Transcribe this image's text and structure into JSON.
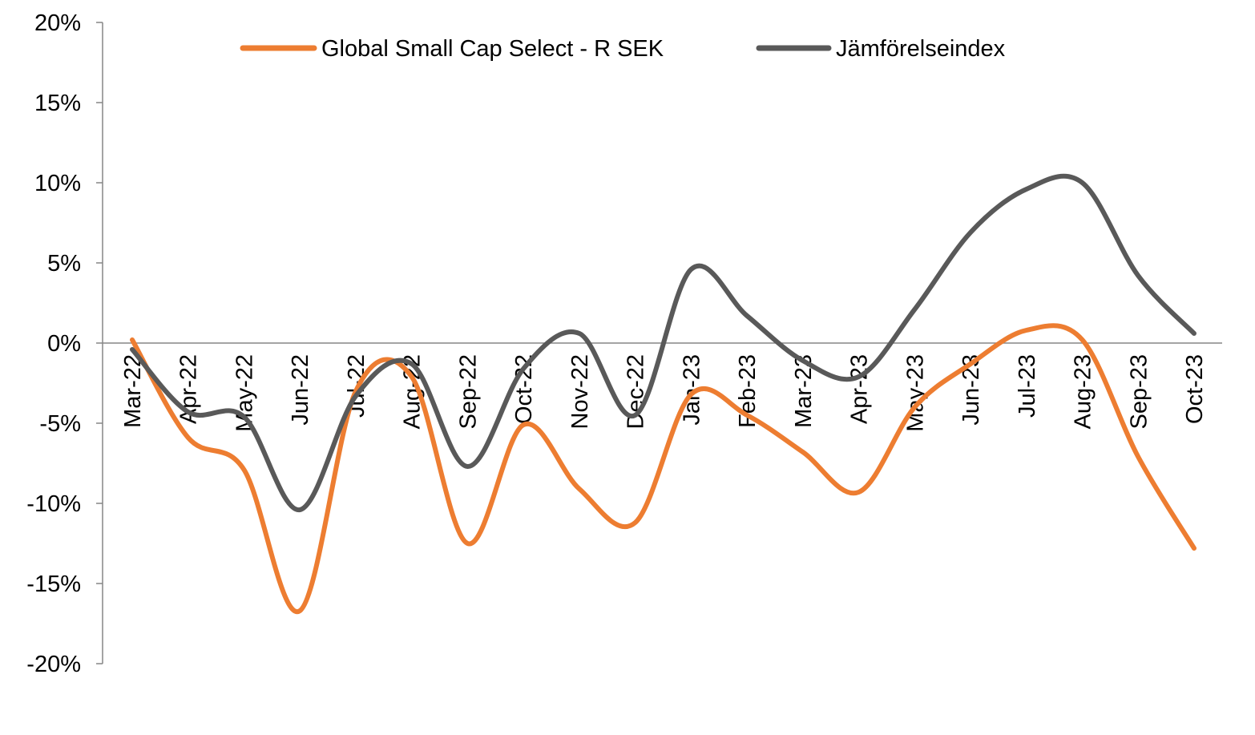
{
  "chart_data": {
    "type": "line",
    "title": "",
    "xlabel": "",
    "ylabel": "",
    "categories": [
      "Mar-22",
      "Apr-22",
      "May-22",
      "Jun-22",
      "Jul-22",
      "Aug-22",
      "Sep-22",
      "Oct-22",
      "Nov-22",
      "Dec-22",
      "Jan-23",
      "Feb-23",
      "Mar-23",
      "Apr-23",
      "May-23",
      "Jun-23",
      "Jul-23",
      "Aug-23",
      "Sep-23",
      "Oct-23"
    ],
    "ylim": [
      -20,
      20
    ],
    "yticks": [
      -20,
      -15,
      -10,
      -5,
      0,
      5,
      10,
      15,
      20
    ],
    "ytick_labels": [
      "-20%",
      "-15%",
      "-10%",
      "-5%",
      "0%",
      "5%",
      "10%",
      "15%",
      "20%"
    ],
    "legend_position": "top",
    "grid": false,
    "series": [
      {
        "name": "Global Small Cap Select - R SEK",
        "color": "#ED7D31",
        "values": [
          0.2,
          -5.9,
          -7.9,
          -16.7,
          -3.0,
          -2.1,
          -12.5,
          -5.1,
          -9.1,
          -11.2,
          -3.2,
          -4.5,
          -6.8,
          -9.3,
          -4.0,
          -1.3,
          0.8,
          0.2,
          -7.1,
          -12.8
        ]
      },
      {
        "name": "Jämförelseindex",
        "color": "#595959",
        "values": [
          -0.4,
          -4.3,
          -4.6,
          -10.4,
          -3.3,
          -1.3,
          -7.7,
          -1.6,
          0.6,
          -4.5,
          4.6,
          1.7,
          -1.1,
          -2.1,
          2.1,
          6.9,
          9.6,
          10.0,
          4.2,
          0.6
        ]
      }
    ]
  }
}
